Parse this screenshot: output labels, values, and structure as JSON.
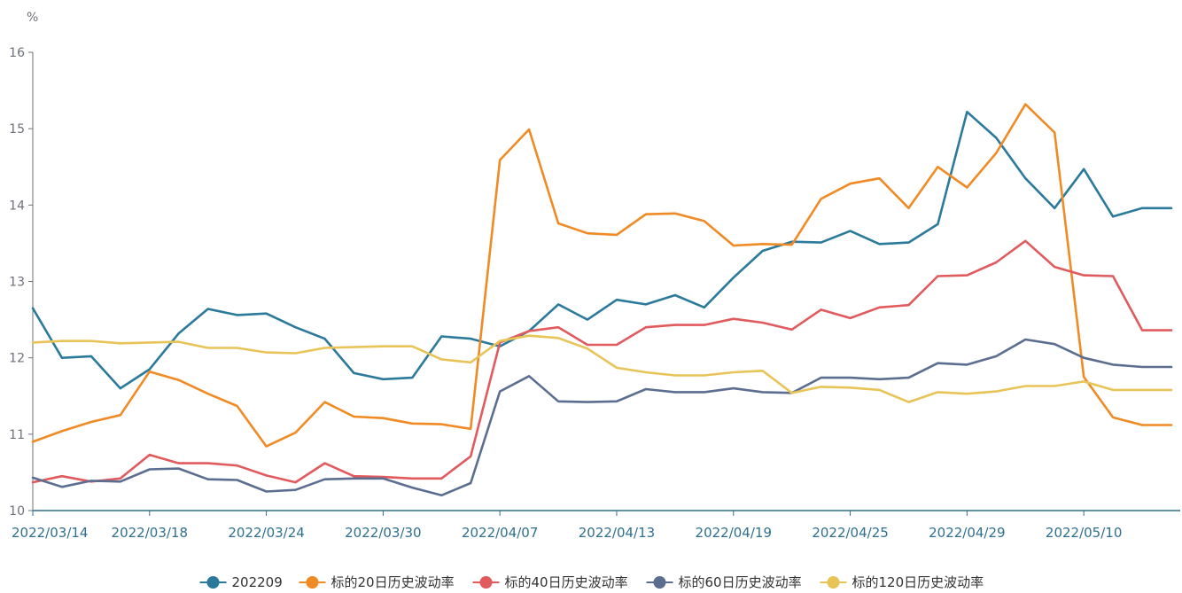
{
  "chart_data": {
    "type": "line",
    "y_unit": "%",
    "ylim": [
      10,
      16
    ],
    "y_ticks": [
      "10",
      "11",
      "12",
      "13",
      "14",
      "15",
      "16"
    ],
    "x_tick_labels": [
      "2022/03/14",
      "2022/03/18",
      "2022/03/24",
      "2022/03/30",
      "2022/04/07",
      "2022/04/13",
      "2022/04/19",
      "2022/04/25",
      "2022/04/29",
      "2022/05/10"
    ],
    "x": [
      "2022/03/14",
      "2022/03/15",
      "2022/03/16",
      "2022/03/17",
      "2022/03/18",
      "2022/03/21",
      "2022/03/22",
      "2022/03/23",
      "2022/03/24",
      "2022/03/25",
      "2022/03/28",
      "2022/03/29",
      "2022/03/30",
      "2022/03/31",
      "2022/04/01",
      "2022/04/06",
      "2022/04/07",
      "2022/04/08",
      "2022/04/11",
      "2022/04/12",
      "2022/04/13",
      "2022/04/14",
      "2022/04/15",
      "2022/04/18",
      "2022/04/19",
      "2022/04/20",
      "2022/04/21",
      "2022/04/22",
      "2022/04/25",
      "2022/04/26",
      "2022/04/27",
      "2022/04/28",
      "2022/04/29",
      "2022/05/05",
      "2022/05/06",
      "2022/05/09",
      "2022/05/10",
      "2022/05/11",
      "2022/05/12",
      "2022/05/13"
    ],
    "grid": false,
    "legend": "bottom-center",
    "series": [
      {
        "name": "202209",
        "color": "#2b7a9b",
        "values": [
          12.65,
          12.0,
          12.02,
          11.6,
          11.85,
          12.32,
          12.64,
          12.56,
          12.58,
          12.4,
          12.25,
          11.8,
          11.72,
          11.74,
          12.28,
          12.25,
          12.15,
          12.35,
          12.7,
          12.5,
          12.76,
          12.7,
          12.82,
          12.66,
          13.05,
          13.4,
          13.52,
          13.51,
          13.66,
          13.49,
          13.51,
          13.75,
          15.22,
          14.88,
          14.35,
          13.96,
          14.47,
          13.85,
          13.96,
          13.96
        ]
      },
      {
        "name": "标的20日历史波动率",
        "color": "#f08a24",
        "values": [
          10.9,
          11.04,
          11.16,
          11.25,
          11.82,
          11.71,
          11.53,
          11.37,
          10.84,
          11.02,
          11.42,
          11.23,
          11.21,
          11.14,
          11.13,
          11.07,
          14.59,
          14.99,
          13.76,
          13.63,
          13.61,
          13.88,
          13.89,
          13.79,
          13.47,
          13.49,
          13.48,
          14.08,
          14.28,
          14.35,
          13.96,
          14.5,
          14.23,
          14.68,
          15.32,
          14.95,
          11.75,
          11.22,
          11.12,
          11.12
        ]
      },
      {
        "name": "标的40日历史波动率",
        "color": "#e05a5e",
        "values": [
          10.37,
          10.45,
          10.38,
          10.42,
          10.73,
          10.62,
          10.62,
          10.59,
          10.46,
          10.37,
          10.62,
          10.45,
          10.44,
          10.42,
          10.42,
          10.71,
          12.2,
          12.35,
          12.4,
          12.17,
          12.17,
          12.4,
          12.43,
          12.43,
          12.51,
          12.46,
          12.37,
          12.63,
          12.52,
          12.66,
          12.69,
          13.07,
          13.08,
          13.25,
          13.53,
          13.19,
          13.08,
          13.07,
          12.36,
          12.36
        ]
      },
      {
        "name": "标的60日历史波动率",
        "color": "#5b6e90",
        "values": [
          10.43,
          10.31,
          10.39,
          10.38,
          10.54,
          10.55,
          10.41,
          10.4,
          10.25,
          10.27,
          10.41,
          10.42,
          10.42,
          10.3,
          10.2,
          10.36,
          11.56,
          11.76,
          11.43,
          11.42,
          11.43,
          11.59,
          11.55,
          11.55,
          11.6,
          11.55,
          11.54,
          11.74,
          11.74,
          11.72,
          11.74,
          11.93,
          11.91,
          12.02,
          12.24,
          12.18,
          12.0,
          11.91,
          11.88,
          11.88
        ]
      },
      {
        "name": "标的120日历史波动率",
        "color": "#e8c458",
        "values": [
          12.2,
          12.22,
          12.22,
          12.19,
          12.2,
          12.21,
          12.13,
          12.13,
          12.07,
          12.06,
          12.13,
          12.14,
          12.15,
          12.15,
          11.98,
          11.94,
          12.22,
          12.29,
          12.26,
          12.12,
          11.87,
          11.81,
          11.77,
          11.77,
          11.81,
          11.83,
          11.54,
          11.62,
          11.61,
          11.58,
          11.42,
          11.55,
          11.53,
          11.56,
          11.63,
          11.63,
          11.69,
          11.58,
          11.58,
          11.58
        ]
      }
    ]
  }
}
